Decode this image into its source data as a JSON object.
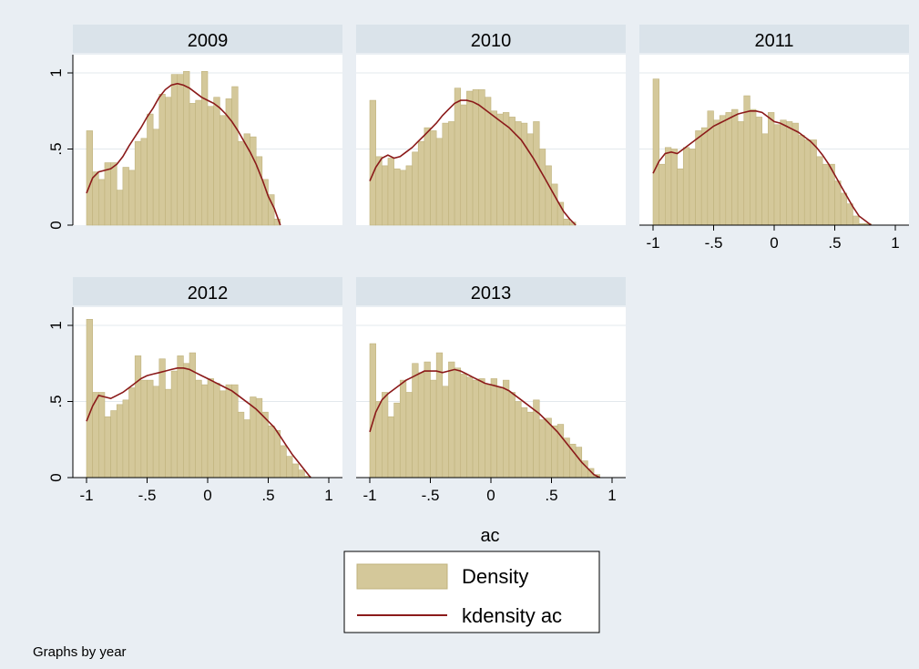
{
  "figure": {
    "background": "#e9eef3",
    "panel_background": "#ffffff",
    "strip_background": "#dae3ea",
    "bar_fill": "#d4c89a",
    "bar_stroke": "#bfb27c",
    "line_color": "#8b1a1a",
    "gridline_color": "#e3e8ec",
    "note": "Graphs by year"
  },
  "chart_data": {
    "type": "bar",
    "xlabel": "ac",
    "ylabel": "",
    "xlim": [
      -1,
      1
    ],
    "ylim": [
      0,
      1
    ],
    "x_ticks": [
      "-1",
      "-.5",
      "0",
      ".5",
      "1"
    ],
    "y_ticks": [
      "0",
      ".5",
      "1"
    ],
    "grid": true,
    "legend_position": "bottom-center",
    "legend": [
      {
        "label": "Density",
        "kind": "bar"
      },
      {
        "label": "kdensity ac",
        "kind": "line"
      }
    ],
    "bin_width": 0.05,
    "panels": [
      {
        "title": "2009",
        "bin_starts": [
          -1,
          -0.95,
          -0.9,
          -0.85,
          -0.8,
          -0.75,
          -0.7,
          -0.65,
          -0.6,
          -0.55,
          -0.5,
          -0.45,
          -0.4,
          -0.35,
          -0.3,
          -0.25,
          -0.2,
          -0.15,
          -0.1,
          -0.05,
          0,
          0.05,
          0.1,
          0.15,
          0.2,
          0.25,
          0.3,
          0.35,
          0.4,
          0.45,
          0.5,
          0.55,
          0.6
        ],
        "density": [
          0.62,
          0.35,
          0.3,
          0.41,
          0.41,
          0.23,
          0.38,
          0.36,
          0.55,
          0.57,
          0.73,
          0.63,
          0.86,
          0.84,
          0.99,
          0.99,
          1.01,
          0.8,
          0.82,
          1.01,
          0.78,
          0.84,
          0.72,
          0.83,
          0.91,
          0.55,
          0.6,
          0.58,
          0.45,
          0.3,
          0.2,
          0.04,
          0.0
        ],
        "kde_x": [
          -1,
          -0.95,
          -0.9,
          -0.85,
          -0.8,
          -0.75,
          -0.7,
          -0.65,
          -0.6,
          -0.55,
          -0.5,
          -0.45,
          -0.4,
          -0.35,
          -0.3,
          -0.25,
          -0.2,
          -0.15,
          -0.1,
          -0.05,
          0,
          0.05,
          0.1,
          0.15,
          0.2,
          0.25,
          0.3,
          0.35,
          0.4,
          0.45,
          0.5,
          0.55,
          0.6
        ],
        "kde_y": [
          0.21,
          0.31,
          0.35,
          0.36,
          0.37,
          0.4,
          0.45,
          0.52,
          0.58,
          0.64,
          0.71,
          0.77,
          0.84,
          0.89,
          0.92,
          0.93,
          0.92,
          0.9,
          0.87,
          0.84,
          0.82,
          0.8,
          0.77,
          0.73,
          0.68,
          0.62,
          0.55,
          0.48,
          0.4,
          0.3,
          0.19,
          0.11,
          0.0
        ]
      },
      {
        "title": "2010",
        "bin_starts": [
          -1,
          -0.95,
          -0.9,
          -0.85,
          -0.8,
          -0.75,
          -0.7,
          -0.65,
          -0.6,
          -0.55,
          -0.5,
          -0.45,
          -0.4,
          -0.35,
          -0.3,
          -0.25,
          -0.2,
          -0.15,
          -0.1,
          -0.05,
          0,
          0.05,
          0.1,
          0.15,
          0.2,
          0.25,
          0.3,
          0.35,
          0.4,
          0.45,
          0.5,
          0.55,
          0.6,
          0.65
        ],
        "density": [
          0.82,
          0.45,
          0.39,
          0.44,
          0.37,
          0.36,
          0.39,
          0.48,
          0.55,
          0.64,
          0.62,
          0.57,
          0.67,
          0.68,
          0.9,
          0.79,
          0.88,
          0.89,
          0.89,
          0.84,
          0.75,
          0.73,
          0.74,
          0.71,
          0.68,
          0.67,
          0.6,
          0.68,
          0.5,
          0.39,
          0.27,
          0.15,
          0.04,
          0.02
        ],
        "kde_x": [
          -1,
          -0.95,
          -0.9,
          -0.85,
          -0.8,
          -0.75,
          -0.7,
          -0.65,
          -0.6,
          -0.55,
          -0.5,
          -0.45,
          -0.4,
          -0.35,
          -0.3,
          -0.25,
          -0.2,
          -0.15,
          -0.1,
          -0.05,
          0,
          0.05,
          0.1,
          0.15,
          0.2,
          0.25,
          0.3,
          0.35,
          0.4,
          0.45,
          0.5,
          0.55,
          0.6,
          0.65,
          0.7
        ],
        "kde_y": [
          0.29,
          0.38,
          0.44,
          0.46,
          0.44,
          0.45,
          0.48,
          0.51,
          0.55,
          0.59,
          0.63,
          0.67,
          0.72,
          0.76,
          0.8,
          0.82,
          0.82,
          0.81,
          0.79,
          0.76,
          0.73,
          0.7,
          0.67,
          0.64,
          0.6,
          0.56,
          0.5,
          0.44,
          0.37,
          0.3,
          0.23,
          0.16,
          0.09,
          0.04,
          0.0
        ]
      },
      {
        "title": "2011",
        "bin_starts": [
          -1,
          -0.95,
          -0.9,
          -0.85,
          -0.8,
          -0.75,
          -0.7,
          -0.65,
          -0.6,
          -0.55,
          -0.5,
          -0.45,
          -0.4,
          -0.35,
          -0.3,
          -0.25,
          -0.2,
          -0.15,
          -0.1,
          -0.05,
          0,
          0.05,
          0.1,
          0.15,
          0.2,
          0.25,
          0.3,
          0.35,
          0.4,
          0.45,
          0.5,
          0.55,
          0.6,
          0.65,
          0.7,
          0.75
        ],
        "density": [
          0.96,
          0.4,
          0.51,
          0.5,
          0.37,
          0.51,
          0.5,
          0.62,
          0.64,
          0.75,
          0.69,
          0.72,
          0.74,
          0.76,
          0.68,
          0.85,
          0.76,
          0.71,
          0.6,
          0.74,
          0.66,
          0.69,
          0.68,
          0.67,
          0.59,
          0.56,
          0.56,
          0.45,
          0.4,
          0.4,
          0.29,
          0.21,
          0.14,
          0.06,
          0.01,
          0.01
        ],
        "kde_x": [
          -1,
          -0.95,
          -0.9,
          -0.85,
          -0.8,
          -0.75,
          -0.7,
          -0.65,
          -0.6,
          -0.55,
          -0.5,
          -0.45,
          -0.4,
          -0.35,
          -0.3,
          -0.25,
          -0.2,
          -0.15,
          -0.1,
          -0.05,
          0,
          0.05,
          0.1,
          0.15,
          0.2,
          0.25,
          0.3,
          0.35,
          0.4,
          0.45,
          0.5,
          0.55,
          0.6,
          0.65,
          0.7,
          0.75,
          0.8
        ],
        "kde_y": [
          0.34,
          0.42,
          0.47,
          0.48,
          0.47,
          0.5,
          0.53,
          0.56,
          0.59,
          0.62,
          0.65,
          0.67,
          0.69,
          0.71,
          0.73,
          0.74,
          0.75,
          0.75,
          0.74,
          0.71,
          0.68,
          0.67,
          0.65,
          0.63,
          0.61,
          0.58,
          0.55,
          0.51,
          0.46,
          0.4,
          0.33,
          0.26,
          0.19,
          0.12,
          0.06,
          0.03,
          0.0
        ]
      },
      {
        "title": "2012",
        "bin_starts": [
          -1,
          -0.95,
          -0.9,
          -0.85,
          -0.8,
          -0.75,
          -0.7,
          -0.65,
          -0.6,
          -0.55,
          -0.5,
          -0.45,
          -0.4,
          -0.35,
          -0.3,
          -0.25,
          -0.2,
          -0.15,
          -0.1,
          -0.05,
          0,
          0.05,
          0.1,
          0.15,
          0.2,
          0.25,
          0.3,
          0.35,
          0.4,
          0.45,
          0.5,
          0.55,
          0.6,
          0.65,
          0.7,
          0.75,
          0.8
        ],
        "density": [
          1.04,
          0.56,
          0.56,
          0.4,
          0.44,
          0.48,
          0.51,
          0.59,
          0.8,
          0.64,
          0.64,
          0.6,
          0.78,
          0.58,
          0.7,
          0.8,
          0.75,
          0.82,
          0.64,
          0.61,
          0.65,
          0.62,
          0.57,
          0.61,
          0.61,
          0.43,
          0.38,
          0.53,
          0.52,
          0.43,
          0.34,
          0.31,
          0.21,
          0.14,
          0.09,
          0.05,
          0.01
        ],
        "kde_x": [
          -1,
          -0.95,
          -0.9,
          -0.85,
          -0.8,
          -0.75,
          -0.7,
          -0.65,
          -0.6,
          -0.55,
          -0.5,
          -0.45,
          -0.4,
          -0.35,
          -0.3,
          -0.25,
          -0.2,
          -0.15,
          -0.1,
          -0.05,
          0,
          0.05,
          0.1,
          0.15,
          0.2,
          0.25,
          0.3,
          0.35,
          0.4,
          0.45,
          0.5,
          0.55,
          0.6,
          0.65,
          0.7,
          0.75,
          0.8,
          0.85
        ],
        "kde_y": [
          0.37,
          0.47,
          0.54,
          0.53,
          0.52,
          0.54,
          0.56,
          0.59,
          0.62,
          0.65,
          0.67,
          0.68,
          0.69,
          0.7,
          0.71,
          0.72,
          0.72,
          0.71,
          0.69,
          0.67,
          0.65,
          0.63,
          0.61,
          0.59,
          0.57,
          0.54,
          0.51,
          0.48,
          0.45,
          0.41,
          0.37,
          0.33,
          0.27,
          0.21,
          0.15,
          0.1,
          0.05,
          0.0
        ]
      },
      {
        "title": "2013",
        "bin_starts": [
          -1,
          -0.95,
          -0.9,
          -0.85,
          -0.8,
          -0.75,
          -0.7,
          -0.65,
          -0.6,
          -0.55,
          -0.5,
          -0.45,
          -0.4,
          -0.35,
          -0.3,
          -0.25,
          -0.2,
          -0.15,
          -0.1,
          -0.05,
          0,
          0.05,
          0.1,
          0.15,
          0.2,
          0.25,
          0.3,
          0.35,
          0.4,
          0.45,
          0.5,
          0.55,
          0.6,
          0.65,
          0.7,
          0.75,
          0.8,
          0.85
        ],
        "density": [
          0.88,
          0.5,
          0.56,
          0.4,
          0.49,
          0.64,
          0.56,
          0.75,
          0.69,
          0.76,
          0.64,
          0.82,
          0.6,
          0.76,
          0.72,
          0.68,
          0.66,
          0.64,
          0.65,
          0.61,
          0.65,
          0.59,
          0.64,
          0.56,
          0.5,
          0.46,
          0.43,
          0.51,
          0.38,
          0.39,
          0.34,
          0.35,
          0.26,
          0.22,
          0.2,
          0.11,
          0.06,
          0.02
        ],
        "kde_x": [
          -1,
          -0.95,
          -0.9,
          -0.85,
          -0.8,
          -0.75,
          -0.7,
          -0.65,
          -0.6,
          -0.55,
          -0.5,
          -0.45,
          -0.4,
          -0.35,
          -0.3,
          -0.25,
          -0.2,
          -0.15,
          -0.1,
          -0.05,
          0,
          0.05,
          0.1,
          0.15,
          0.2,
          0.25,
          0.3,
          0.35,
          0.4,
          0.45,
          0.5,
          0.55,
          0.6,
          0.65,
          0.7,
          0.75,
          0.8,
          0.85,
          0.9
        ],
        "kde_y": [
          0.3,
          0.43,
          0.51,
          0.55,
          0.58,
          0.61,
          0.64,
          0.66,
          0.68,
          0.7,
          0.7,
          0.7,
          0.69,
          0.7,
          0.71,
          0.7,
          0.68,
          0.66,
          0.64,
          0.62,
          0.61,
          0.6,
          0.59,
          0.57,
          0.54,
          0.51,
          0.48,
          0.45,
          0.42,
          0.38,
          0.34,
          0.3,
          0.25,
          0.2,
          0.15,
          0.1,
          0.06,
          0.02,
          0.0
        ]
      }
    ]
  }
}
